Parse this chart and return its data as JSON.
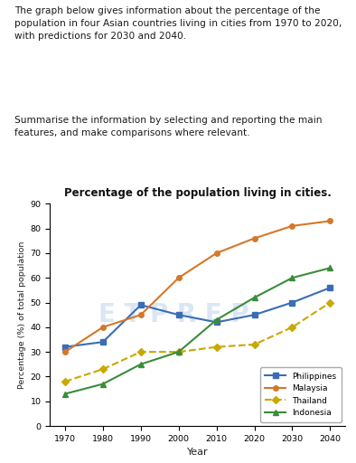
{
  "title": "Percentage of the population living in cities.",
  "xlabel": "Year",
  "ylabel": "Percentage (%) of total population",
  "years": [
    1970,
    1980,
    1990,
    2000,
    2010,
    2020,
    2030,
    2040
  ],
  "philippines": [
    32,
    34,
    49,
    45,
    42,
    45,
    50,
    56
  ],
  "malaysia": [
    30,
    40,
    45,
    60,
    70,
    76,
    81,
    83
  ],
  "thailand": [
    18,
    23,
    30,
    30,
    32,
    33,
    40,
    50
  ],
  "indonesia": [
    13,
    17,
    25,
    30,
    43,
    52,
    60,
    64
  ],
  "philippines_color": "#3a6db5",
  "malaysia_color": "#d4782a",
  "thailand_color": "#c9a800",
  "indonesia_color": "#3a8c3a",
  "marker_philippines": "s",
  "marker_malaysia": "o",
  "marker_thailand": "D",
  "marker_indonesia": "^",
  "ylim": [
    0,
    90
  ],
  "yticks": [
    0,
    10,
    20,
    30,
    40,
    50,
    60,
    70,
    80,
    90
  ],
  "bg_color": "#ffffff",
  "watermark_text": "E T P R E P",
  "paragraph1": "The graph below gives information about the percentage of the population in four Asian countries living in cities from 1970 to 2020, with predictions for 2030 and 2040.",
  "paragraph2": "Summarise the information by selecting and reporting the main features, and make comparisons where relevant."
}
